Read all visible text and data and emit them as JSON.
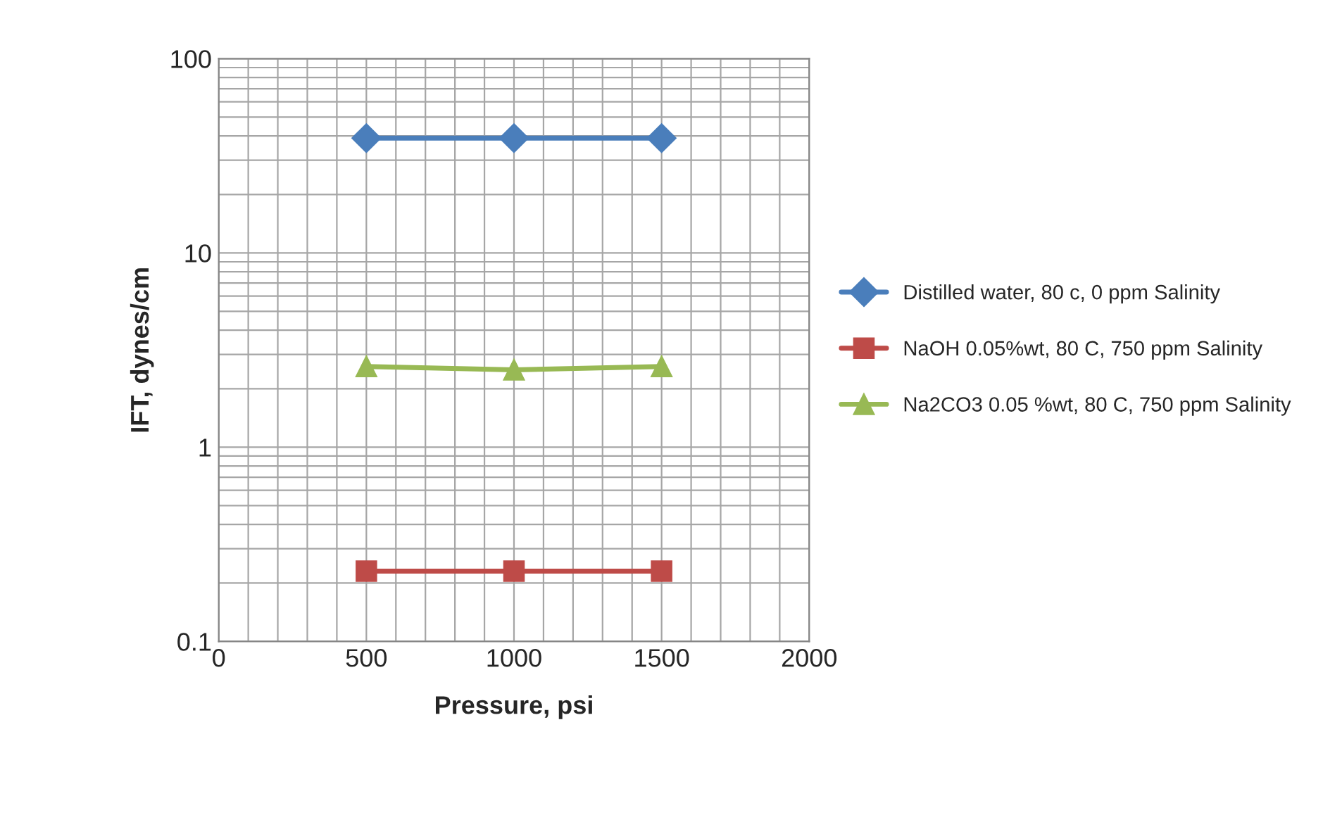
{
  "chart_data": {
    "type": "line",
    "xlabel": "Pressure, psi",
    "ylabel": "IFT, dynes/cm",
    "x": [
      500,
      1000,
      1500
    ],
    "series": [
      {
        "name": "Distilled water, 80 c, 0 ppm Salinity",
        "color": "#4a7ebb",
        "marker": "diamond",
        "values": [
          39,
          39,
          39
        ]
      },
      {
        "name": "NaOH 0.05%wt, 80 C, 750 ppm Salinity",
        "color": "#be4b48",
        "marker": "square",
        "values": [
          0.23,
          0.23,
          0.23
        ]
      },
      {
        "name": "Na2CO3 0.05 %wt, 80 C, 750 ppm Salinity",
        "color": "#98b954",
        "marker": "triangle",
        "values": [
          2.6,
          2.5,
          2.6
        ]
      }
    ],
    "log": "y",
    "xlim": [
      0,
      2000
    ],
    "xticks": [
      0,
      500,
      1000,
      1500,
      2000
    ],
    "ylim": [
      0.1,
      100
    ],
    "yticks": [
      0.1,
      1,
      10,
      100
    ],
    "grid": true,
    "legend": "right",
    "line_style": "solid"
  }
}
